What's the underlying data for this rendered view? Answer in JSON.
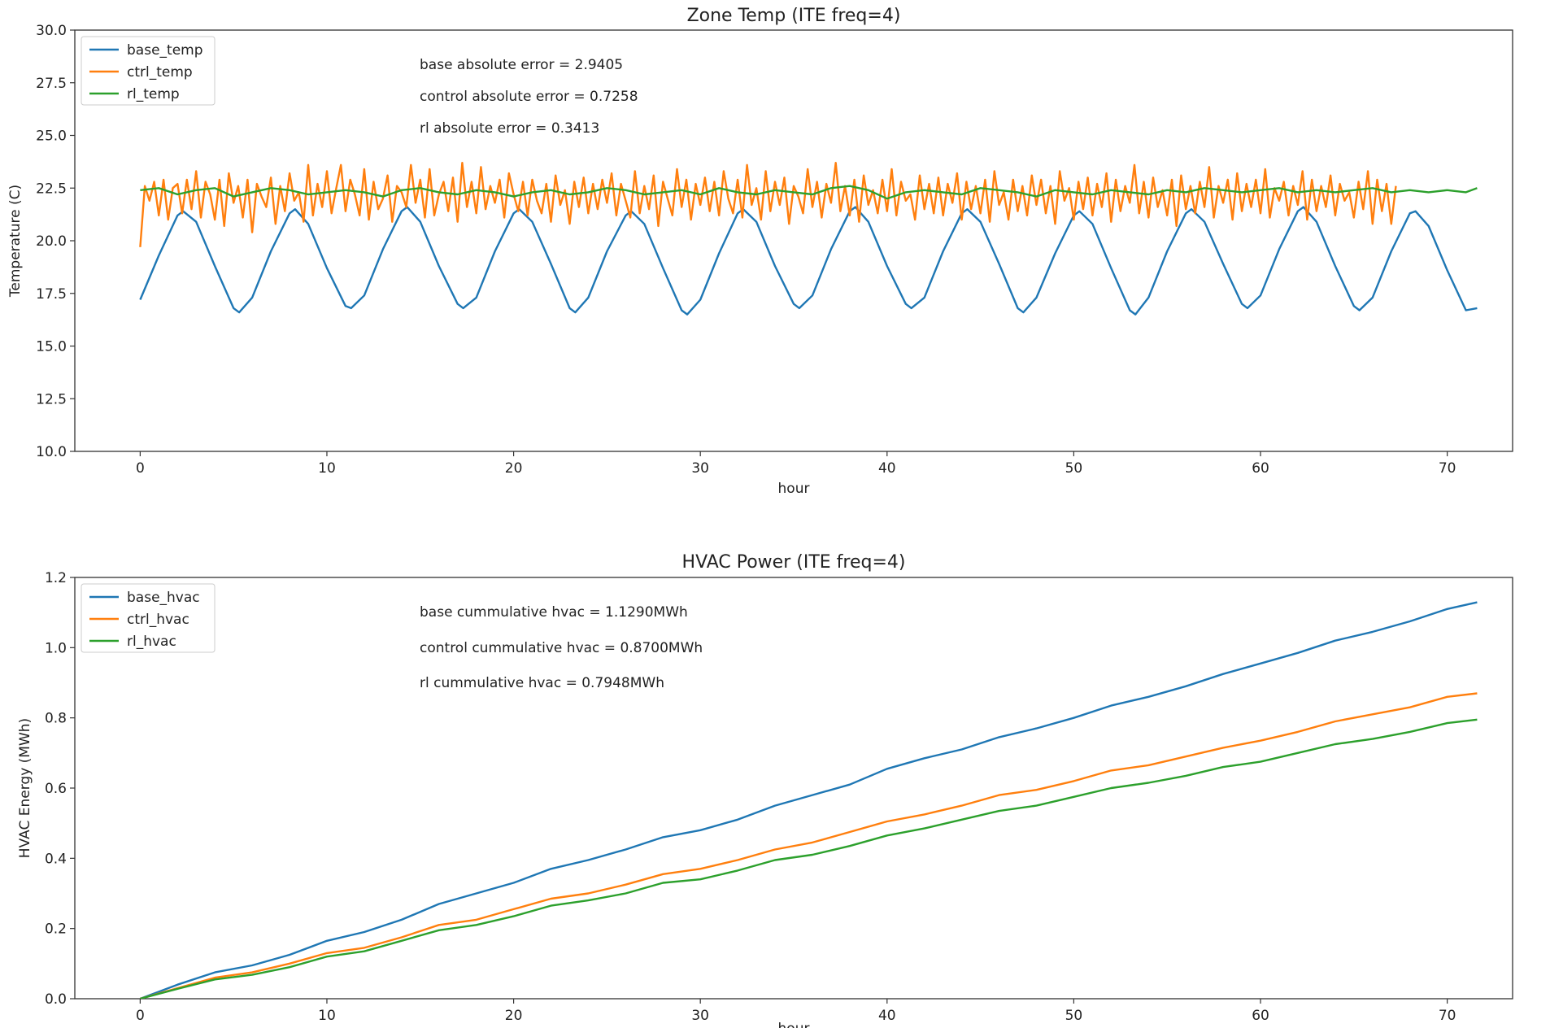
{
  "chart_data": [
    {
      "type": "line",
      "title": "Zone Temp (ITE freq=4)",
      "xlabel": "hour",
      "ylabel": "Temperature (C)",
      "xlim": [
        -3.5,
        73.5
      ],
      "ylim": [
        10.0,
        30.0
      ],
      "xticks": [
        0,
        10,
        20,
        30,
        40,
        50,
        60,
        70
      ],
      "yticks": [
        10.0,
        12.5,
        15.0,
        17.5,
        20.0,
        22.5,
        25.0,
        27.5,
        30.0
      ],
      "xtick_labels": [
        "0",
        "10",
        "20",
        "30",
        "40",
        "50",
        "60",
        "70"
      ],
      "ytick_labels": [
        "10.0",
        "12.5",
        "15.0",
        "17.5",
        "20.0",
        "22.5",
        "25.0",
        "27.5",
        "30.0"
      ],
      "legend": {
        "placement": "top-left",
        "entries": [
          "base_temp",
          "ctrl_temp",
          "rl_temp"
        ]
      },
      "annotations": [
        "base absolute error = 2.9405",
        "control absolute error = 0.7258",
        "rl absolute error = 0.3413"
      ],
      "series": [
        {
          "name": "base_temp",
          "color": "#1f77b4",
          "x": [
            0,
            1,
            2,
            2.3,
            3,
            4,
            5,
            5.3,
            6,
            7,
            8,
            8.3,
            9,
            10,
            11,
            11.3,
            12,
            13,
            14,
            14.3,
            15,
            16,
            17,
            17.3,
            18,
            19,
            20,
            20.3,
            21,
            22,
            23,
            23.3,
            24,
            25,
            26,
            26.3,
            27,
            28,
            29,
            29.3,
            30,
            31,
            32,
            32.3,
            33,
            34,
            35,
            35.3,
            36,
            37,
            38,
            38.3,
            39,
            40,
            41,
            41.3,
            42,
            43,
            44,
            44.3,
            45,
            46,
            47,
            47.3,
            48,
            49,
            50,
            50.3,
            51,
            52,
            53,
            53.3,
            54,
            55,
            56,
            56.3,
            57,
            58,
            59,
            59.3,
            60,
            61,
            62,
            62.3,
            63,
            64,
            65,
            65.3,
            66,
            67,
            68,
            68.3,
            69,
            70,
            71,
            71.6
          ],
          "values": [
            17.2,
            19.3,
            21.2,
            21.4,
            20.9,
            18.8,
            16.8,
            16.6,
            17.3,
            19.5,
            21.3,
            21.5,
            20.8,
            18.7,
            16.9,
            16.8,
            17.4,
            19.6,
            21.4,
            21.6,
            20.9,
            18.8,
            17.0,
            16.8,
            17.3,
            19.5,
            21.3,
            21.5,
            20.9,
            18.9,
            16.8,
            16.6,
            17.3,
            19.5,
            21.2,
            21.4,
            20.8,
            18.7,
            16.7,
            16.5,
            17.2,
            19.4,
            21.3,
            21.5,
            20.9,
            18.8,
            17.0,
            16.8,
            17.4,
            19.6,
            21.4,
            21.6,
            20.9,
            18.8,
            17.0,
            16.8,
            17.3,
            19.5,
            21.3,
            21.5,
            20.9,
            18.9,
            16.8,
            16.6,
            17.3,
            19.4,
            21.2,
            21.4,
            20.8,
            18.7,
            16.7,
            16.5,
            17.3,
            19.5,
            21.3,
            21.5,
            20.9,
            18.9,
            17.0,
            16.8,
            17.4,
            19.6,
            21.4,
            21.6,
            20.9,
            18.8,
            16.9,
            16.7,
            17.3,
            19.5,
            21.3,
            21.4,
            20.7,
            18.6,
            16.7,
            16.8
          ]
        },
        {
          "name": "ctrl_temp",
          "color": "#ff7f0e",
          "x_start": 0,
          "x_step": 0.25,
          "values": [
            19.7,
            22.6,
            21.9,
            22.8,
            21.2,
            22.9,
            21.0,
            22.5,
            22.7,
            21.3,
            22.9,
            21.5,
            23.3,
            21.1,
            22.8,
            22.2,
            21.0,
            22.9,
            20.7,
            23.2,
            21.8,
            22.6,
            21.1,
            22.9,
            20.4,
            22.7,
            22.1,
            21.6,
            23.0,
            20.8,
            22.6,
            21.4,
            23.2,
            21.9,
            22.3,
            20.9,
            23.6,
            21.2,
            22.7,
            21.6,
            23.3,
            21.3,
            22.5,
            23.6,
            21.4,
            22.9,
            22.2,
            21.2,
            23.4,
            21.0,
            22.8,
            21.5,
            22.0,
            23.1,
            20.9,
            22.6,
            22.3,
            21.6,
            23.6,
            21.8,
            22.9,
            21.1,
            23.4,
            21.2,
            22.2,
            22.8,
            21.4,
            23.0,
            20.9,
            23.7,
            21.6,
            22.8,
            21.3,
            23.5,
            21.5,
            22.6,
            21.8,
            22.9,
            21.1,
            23.2,
            22.2,
            21.4,
            22.8,
            21.2,
            22.9,
            21.9,
            21.3,
            22.7,
            20.9,
            23.1,
            21.7,
            22.4,
            20.8,
            22.8,
            21.6,
            23.0,
            21.3,
            22.7,
            21.5,
            22.9,
            21.8,
            23.2,
            21.2,
            22.7,
            21.9,
            21.1,
            23.3,
            21.3,
            22.6,
            21.5,
            23.1,
            20.7,
            22.8,
            22.0,
            21.2,
            23.4,
            21.6,
            22.9,
            21.0,
            22.7,
            21.7,
            23.0,
            21.4,
            22.8,
            21.2,
            23.3,
            22.0,
            21.3,
            22.9,
            21.1,
            23.6,
            21.7,
            22.5,
            21.0,
            23.3,
            21.4,
            22.8,
            21.7,
            23.0,
            20.8,
            22.6,
            22.1,
            21.3,
            23.4,
            21.6,
            22.8,
            21.1,
            22.7,
            21.8,
            23.7,
            21.4,
            22.6,
            21.2,
            22.9,
            20.9,
            23.1,
            21.7,
            22.4,
            21.3,
            22.9,
            21.4,
            23.4,
            21.2,
            22.8,
            21.9,
            22.2,
            21.0,
            23.1,
            21.5,
            22.7,
            21.3,
            23.0,
            21.2,
            22.7,
            21.8,
            23.2,
            21.0,
            22.8,
            21.5,
            22.6,
            21.3,
            22.9,
            20.9,
            23.3,
            21.7,
            22.3,
            21.0,
            22.9,
            21.4,
            22.6,
            21.2,
            23.1,
            21.7,
            22.9,
            21.3,
            22.6,
            20.8,
            23.3,
            21.9,
            22.5,
            21.0,
            22.8,
            21.5,
            23.0,
            21.2,
            22.7,
            21.6,
            23.2,
            20.9,
            22.9,
            21.4,
            22.6,
            21.8,
            23.6,
            21.3,
            22.8,
            21.1,
            23.0,
            21.6,
            22.4,
            21.2,
            22.9,
            20.7,
            23.1,
            21.5,
            22.6,
            21.3,
            22.8,
            21.6,
            23.5,
            21.1,
            22.6,
            21.8,
            22.9,
            21.0,
            23.2,
            21.4,
            22.7,
            21.6,
            22.9,
            21.3,
            23.4,
            21.1,
            22.5,
            21.9,
            22.8,
            21.2,
            22.6,
            21.7,
            23.3,
            21.0,
            22.9,
            21.4,
            22.6,
            21.6,
            23.1,
            21.2,
            22.7,
            21.9,
            22.3,
            21.1,
            22.8,
            21.5,
            23.3,
            20.8,
            22.9,
            21.4,
            22.7,
            20.8,
            22.6
          ]
        },
        {
          "name": "rl_temp",
          "color": "#2ca02c",
          "x": [
            0,
            1,
            2,
            3,
            4,
            5,
            6,
            7,
            8,
            9,
            10,
            11,
            12,
            13,
            14,
            15,
            16,
            17,
            18,
            19,
            20,
            21,
            22,
            23,
            24,
            25,
            26,
            27,
            28,
            29,
            30,
            31,
            32,
            33,
            34,
            35,
            36,
            37,
            38,
            39,
            40,
            41,
            42,
            43,
            44,
            45,
            46,
            47,
            48,
            49,
            50,
            51,
            52,
            53,
            54,
            55,
            56,
            57,
            58,
            59,
            60,
            61,
            62,
            63,
            64,
            65,
            66,
            67,
            68,
            69,
            70,
            71,
            71.6
          ],
          "values": [
            22.4,
            22.5,
            22.2,
            22.4,
            22.5,
            22.1,
            22.3,
            22.5,
            22.4,
            22.2,
            22.3,
            22.4,
            22.3,
            22.1,
            22.4,
            22.5,
            22.3,
            22.2,
            22.4,
            22.3,
            22.1,
            22.3,
            22.4,
            22.2,
            22.3,
            22.5,
            22.4,
            22.2,
            22.3,
            22.4,
            22.2,
            22.5,
            22.3,
            22.2,
            22.4,
            22.3,
            22.2,
            22.5,
            22.6,
            22.4,
            22.0,
            22.3,
            22.4,
            22.3,
            22.2,
            22.5,
            22.4,
            22.3,
            22.1,
            22.4,
            22.3,
            22.2,
            22.4,
            22.3,
            22.2,
            22.4,
            22.3,
            22.5,
            22.4,
            22.3,
            22.4,
            22.5,
            22.3,
            22.4,
            22.3,
            22.4,
            22.5,
            22.3,
            22.4,
            22.3,
            22.4,
            22.3,
            22.5
          ]
        }
      ]
    },
    {
      "type": "line",
      "title": "HVAC Power (ITE freq=4)",
      "xlabel": "hour",
      "ylabel": "HVAC Energy (MWh)",
      "xlim": [
        -3.5,
        73.5
      ],
      "ylim": [
        0.0,
        1.2
      ],
      "xticks": [
        0,
        10,
        20,
        30,
        40,
        50,
        60,
        70
      ],
      "yticks": [
        0.0,
        0.2,
        0.4,
        0.6,
        0.8,
        1.0,
        1.2
      ],
      "xtick_labels": [
        "0",
        "10",
        "20",
        "30",
        "40",
        "50",
        "60",
        "70"
      ],
      "ytick_labels": [
        "0.0",
        "0.2",
        "0.4",
        "0.6",
        "0.8",
        "1.0",
        "1.2"
      ],
      "legend": {
        "placement": "top-left",
        "entries": [
          "base_hvac",
          "ctrl_hvac",
          "rl_hvac"
        ]
      },
      "annotations": [
        "base cummulative hvac = 1.1290MWh",
        "control cummulative hvac = 0.8700MWh",
        "rl cummulative hvac = 0.7948MWh"
      ],
      "series": [
        {
          "name": "base_hvac",
          "color": "#1f77b4",
          "x": [
            0,
            2,
            4,
            6,
            8,
            10,
            12,
            14,
            16,
            18,
            20,
            22,
            24,
            26,
            28,
            30,
            32,
            34,
            36,
            38,
            40,
            42,
            44,
            46,
            48,
            50,
            52,
            54,
            56,
            58,
            60,
            62,
            64,
            66,
            68,
            70,
            71.6
          ],
          "values": [
            0.0,
            0.04,
            0.075,
            0.095,
            0.125,
            0.165,
            0.19,
            0.225,
            0.27,
            0.3,
            0.33,
            0.37,
            0.395,
            0.425,
            0.46,
            0.48,
            0.51,
            0.55,
            0.58,
            0.61,
            0.655,
            0.685,
            0.71,
            0.745,
            0.77,
            0.8,
            0.835,
            0.86,
            0.89,
            0.925,
            0.955,
            0.985,
            1.02,
            1.045,
            1.075,
            1.11,
            1.129
          ]
        },
        {
          "name": "ctrl_hvac",
          "color": "#ff7f0e",
          "x": [
            0,
            2,
            4,
            6,
            8,
            10,
            12,
            14,
            16,
            18,
            20,
            22,
            24,
            26,
            28,
            30,
            32,
            34,
            36,
            38,
            40,
            42,
            44,
            46,
            48,
            50,
            52,
            54,
            56,
            58,
            60,
            62,
            64,
            66,
            68,
            70,
            71.6
          ],
          "values": [
            0.0,
            0.03,
            0.06,
            0.075,
            0.1,
            0.13,
            0.145,
            0.175,
            0.21,
            0.225,
            0.255,
            0.285,
            0.3,
            0.325,
            0.355,
            0.37,
            0.395,
            0.425,
            0.445,
            0.475,
            0.505,
            0.525,
            0.55,
            0.58,
            0.595,
            0.62,
            0.65,
            0.665,
            0.69,
            0.715,
            0.735,
            0.76,
            0.79,
            0.81,
            0.83,
            0.86,
            0.87
          ]
        },
        {
          "name": "rl_hvac",
          "color": "#2ca02c",
          "x": [
            0,
            2,
            4,
            6,
            8,
            10,
            12,
            14,
            16,
            18,
            20,
            22,
            24,
            26,
            28,
            30,
            32,
            34,
            36,
            38,
            40,
            42,
            44,
            46,
            48,
            50,
            52,
            54,
            56,
            58,
            60,
            62,
            64,
            66,
            68,
            70,
            71.6
          ],
          "values": [
            0.0,
            0.028,
            0.055,
            0.068,
            0.09,
            0.12,
            0.135,
            0.165,
            0.195,
            0.21,
            0.235,
            0.265,
            0.28,
            0.3,
            0.33,
            0.34,
            0.365,
            0.395,
            0.41,
            0.435,
            0.465,
            0.485,
            0.51,
            0.535,
            0.55,
            0.575,
            0.6,
            0.615,
            0.635,
            0.66,
            0.675,
            0.7,
            0.725,
            0.74,
            0.76,
            0.785,
            0.795
          ]
        }
      ]
    }
  ]
}
